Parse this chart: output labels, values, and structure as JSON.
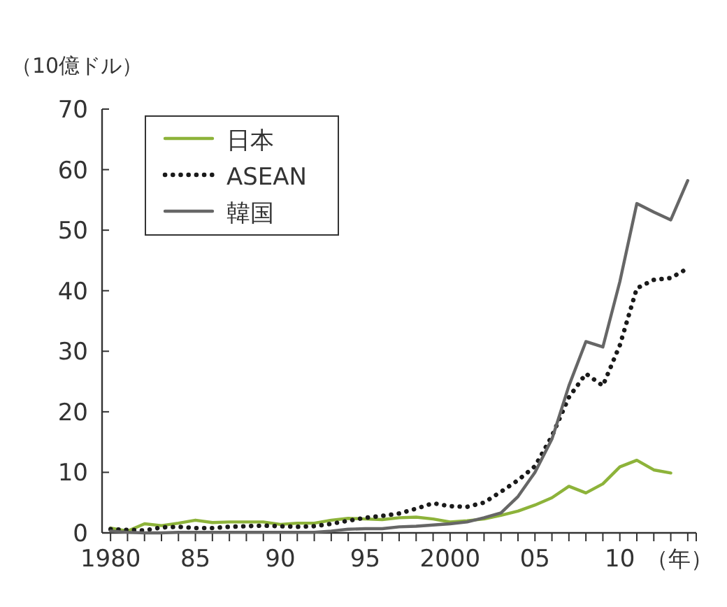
{
  "chart_data": {
    "type": "line",
    "ylabel": "（10億ドル）",
    "xlabel": "（年）",
    "xlim": [
      1979.5,
      2014.5
    ],
    "xticks": [
      {
        "value": 1980,
        "label": "1980"
      },
      {
        "value": 1981,
        "label": null
      },
      {
        "value": 1982,
        "label": null
      },
      {
        "value": 1983,
        "label": null
      },
      {
        "value": 1984,
        "label": null
      },
      {
        "value": 1985,
        "label": "85"
      },
      {
        "value": 1986,
        "label": null
      },
      {
        "value": 1987,
        "label": null
      },
      {
        "value": 1988,
        "label": null
      },
      {
        "value": 1989,
        "label": null
      },
      {
        "value": 1990,
        "label": "90"
      },
      {
        "value": 1991,
        "label": null
      },
      {
        "value": 1992,
        "label": null
      },
      {
        "value": 1993,
        "label": null
      },
      {
        "value": 1994,
        "label": null
      },
      {
        "value": 1995,
        "label": "95"
      },
      {
        "value": 1996,
        "label": null
      },
      {
        "value": 1997,
        "label": null
      },
      {
        "value": 1998,
        "label": null
      },
      {
        "value": 1999,
        "label": null
      },
      {
        "value": 2000,
        "label": "2000"
      },
      {
        "value": 2001,
        "label": null
      },
      {
        "value": 2002,
        "label": null
      },
      {
        "value": 2003,
        "label": null
      },
      {
        "value": 2004,
        "label": null
      },
      {
        "value": 2005,
        "label": "05"
      },
      {
        "value": 2006,
        "label": null
      },
      {
        "value": 2007,
        "label": null
      },
      {
        "value": 2008,
        "label": null
      },
      {
        "value": 2009,
        "label": null
      },
      {
        "value": 2010,
        "label": "10"
      },
      {
        "value": 2011,
        "label": null
      },
      {
        "value": 2012,
        "label": null
      },
      {
        "value": 2013,
        "label": null
      },
      {
        "value": 2014,
        "label": null
      }
    ],
    "ylim": [
      0,
      70
    ],
    "yticks": [
      0,
      10,
      20,
      30,
      40,
      50,
      60,
      70
    ],
    "legend": "top left",
    "grid": false,
    "marker": "none",
    "series": [
      {
        "name": "日本",
        "color": "#8db33a",
        "line_style": "solid",
        "x": [
          1980,
          1981,
          1982,
          1983,
          1984,
          1985,
          1986,
          1987,
          1988,
          1989,
          1990,
          1991,
          1992,
          1993,
          1994,
          1995,
          1996,
          1997,
          1998,
          1999,
          2000,
          2001,
          2002,
          2003,
          2004,
          2005,
          2006,
          2007,
          2008,
          2009,
          2010,
          2011,
          2012,
          2013
        ],
        "values": [
          0.8,
          0.3,
          1.5,
          1.2,
          1.6,
          2.1,
          1.7,
          1.8,
          1.8,
          1.8,
          1.4,
          1.6,
          1.6,
          2.1,
          2.4,
          2.3,
          2.2,
          2.5,
          2.6,
          2.3,
          1.8,
          2.0,
          2.3,
          2.9,
          3.6,
          4.6,
          5.8,
          7.7,
          6.6,
          8.1,
          10.9,
          12.0,
          10.4,
          9.9
        ]
      },
      {
        "name": "ASEAN",
        "color": "#1a1a1a",
        "line_style": "dotted",
        "x": [
          1980,
          1981,
          1982,
          1983,
          1984,
          1985,
          1986,
          1987,
          1988,
          1989,
          1990,
          1991,
          1992,
          1993,
          1994,
          1995,
          1996,
          1997,
          1998,
          1999,
          2000,
          2001,
          2002,
          2003,
          2004,
          2005,
          2006,
          2007,
          2008,
          2009,
          2010,
          2011,
          2012,
          2013,
          2014
        ],
        "values": [
          0.6,
          0.5,
          0.4,
          0.9,
          1.0,
          0.8,
          0.8,
          1.0,
          1.1,
          1.2,
          1.1,
          1.0,
          1.1,
          1.5,
          2.0,
          2.5,
          2.8,
          3.2,
          4.0,
          4.9,
          4.4,
          4.3,
          5.0,
          6.8,
          8.7,
          11.0,
          16.0,
          22.4,
          26.3,
          24.3,
          31.0,
          40.4,
          41.8,
          42.1,
          43.7
        ]
      },
      {
        "name": "韓国",
        "color": "#666666",
        "line_style": "solid",
        "x": [
          1980,
          1981,
          1982,
          1983,
          1984,
          1985,
          1986,
          1987,
          1988,
          1989,
          1990,
          1991,
          1992,
          1993,
          1994,
          1995,
          1996,
          1997,
          1998,
          1999,
          2000,
          2001,
          2002,
          2003,
          2004,
          2005,
          2006,
          2007,
          2008,
          2009,
          2010,
          2011,
          2012,
          2013,
          2014
        ],
        "values": [
          0.3,
          0.1,
          0.0,
          0.0,
          0.1,
          0.1,
          0.1,
          0.1,
          0.1,
          0.1,
          0.1,
          0.1,
          0.1,
          0.3,
          0.6,
          0.7,
          0.7,
          1.0,
          1.1,
          1.3,
          1.5,
          1.8,
          2.5,
          3.3,
          6.0,
          10.0,
          15.5,
          24.3,
          31.6,
          30.7,
          41.5,
          54.4,
          53.0,
          51.7,
          58.2
        ]
      }
    ]
  }
}
